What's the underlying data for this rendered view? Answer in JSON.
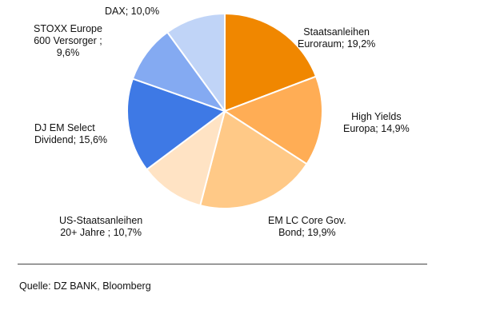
{
  "chart_data": {
    "type": "pie",
    "slices": [
      {
        "label_lines": [
          "Staatsanleihen",
          "Euroraum; 19,2%"
        ],
        "value": 19.2,
        "color": "#f08700"
      },
      {
        "label_lines": [
          "High Yields",
          "Europa; 14,9%"
        ],
        "value": 14.9,
        "color": "#ffad55"
      },
      {
        "label_lines": [
          "EM LC Core Gov.",
          "Bond; 19,9%"
        ],
        "value": 19.9,
        "color": "#ffc987"
      },
      {
        "label_lines": [
          "US-Staatsanleihen",
          "20+ Jahre ; 10,7%"
        ],
        "value": 10.7,
        "color": "#ffe3c4"
      },
      {
        "label_lines": [
          "DJ EM Select",
          "Dividend; 15,6%"
        ],
        "value": 15.6,
        "color": "#3e79e5"
      },
      {
        "label_lines": [
          "STOXX Europe",
          "600 Versorger ;",
          "9,6%"
        ],
        "value": 9.6,
        "color": "#84aaf2"
      },
      {
        "label_lines": [
          "DAX; 10,0%"
        ],
        "value": 10.0,
        "color": "#c0d4f7"
      }
    ]
  },
  "source_text": "Quelle: DZ BANK, Bloomberg"
}
